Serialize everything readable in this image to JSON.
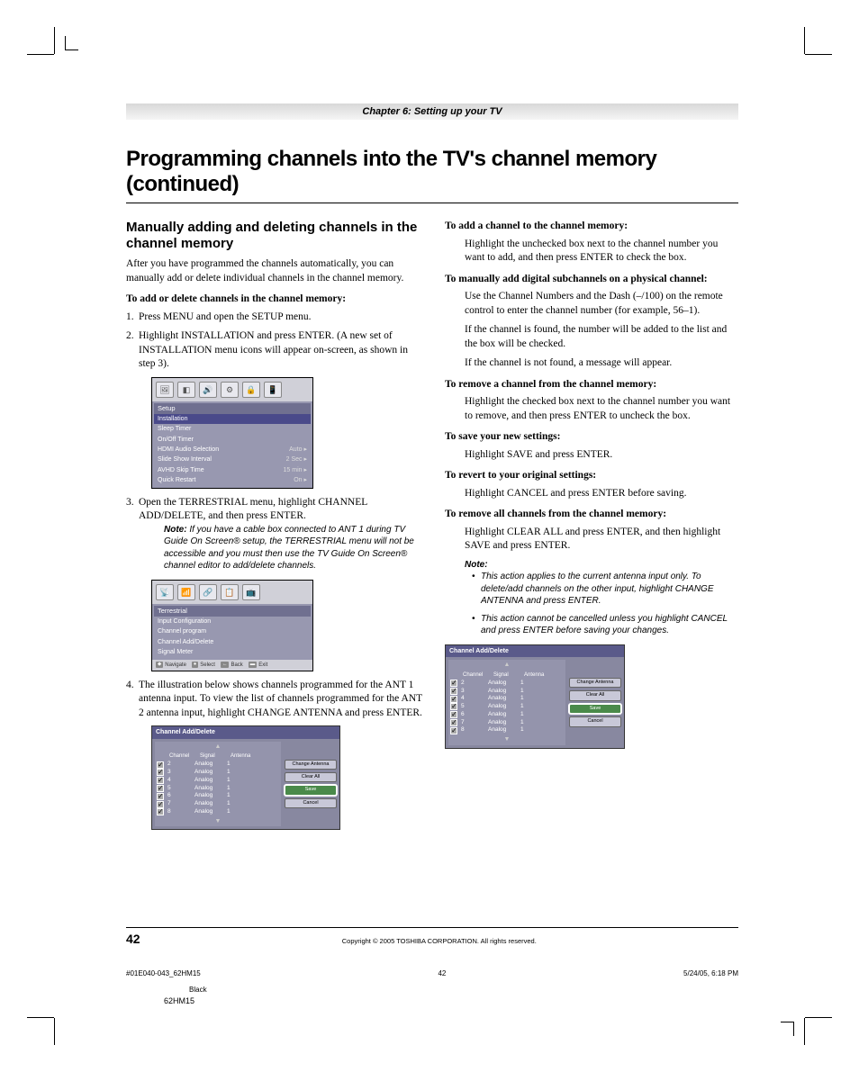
{
  "chapter": "Chapter 6: Setting up your TV",
  "title": "Programming channels into the TV's channel memory (continued)",
  "left": {
    "heading": "Manually adding and deleting channels in the channel memory",
    "intro": "After you have programmed the channels automatically, you can manually add or delete individual channels in the channel memory.",
    "lead": "To add or delete channels in the channel memory:",
    "step1": "Press MENU and open the SETUP menu.",
    "step2": "Highlight INSTALLATION and press ENTER. (A new set of INSTALLATION menu icons will appear on-screen, as shown in step 3).",
    "step3": "Open the TERRESTRIAL menu, highlight CHANNEL ADD/DELETE, and then press ENTER.",
    "note": "If you have a cable box connected to ANT 1 during TV Guide On Screen® setup, the TERRESTRIAL menu will not be accessible and you must then use the TV Guide On Screen® channel editor to add/delete channels.",
    "step4": "The illustration below shows channels programmed for the ANT 1 antenna input. To view the list of channels programmed for the ANT 2 antenna input, highlight CHANGE ANTENNA and press ENTER."
  },
  "setup_menu": {
    "title": "Setup",
    "rows": [
      {
        "label": "Installation",
        "val": "",
        "hl": true
      },
      {
        "label": "Sleep Timer",
        "val": ""
      },
      {
        "label": "On/Off Timer",
        "val": ""
      },
      {
        "label": "HDMI Audio Selection",
        "val": "Auto ▸"
      },
      {
        "label": "Slide Show Interval",
        "val": "2 Sec ▸"
      },
      {
        "label": "AVHD Skip Time",
        "val": "15 min ▸"
      },
      {
        "label": "Quick Restart",
        "val": "On ▸"
      }
    ]
  },
  "terr_menu": {
    "title": "Terrestrial",
    "rows": [
      "Input Configuration",
      "Channel program",
      "Channel Add/Delete",
      "Signal Meter"
    ],
    "bottom": [
      "Navigate",
      "Select",
      "Back",
      "Exit"
    ]
  },
  "cad": {
    "title": "Channel Add/Delete",
    "headers": [
      "",
      "Channel",
      "Signal",
      "Antenna"
    ],
    "rows": [
      {
        "ck": true,
        "ch": "2",
        "sig": "Analog",
        "ant": "1"
      },
      {
        "ck": true,
        "ch": "3",
        "sig": "Analog",
        "ant": "1"
      },
      {
        "ck": true,
        "ch": "4",
        "sig": "Analog",
        "ant": "1"
      },
      {
        "ck": true,
        "ch": "5",
        "sig": "Analog",
        "ant": "1"
      },
      {
        "ck": true,
        "ch": "6",
        "sig": "Analog",
        "ant": "1"
      },
      {
        "ck": true,
        "ch": "7",
        "sig": "Analog",
        "ant": "1"
      },
      {
        "ck": true,
        "ch": "8",
        "sig": "Analog",
        "ant": "1"
      }
    ],
    "btns": {
      "change": "Change Antenna",
      "clear": "Clear All",
      "save": "Save",
      "cancel": "Cancel"
    }
  },
  "right": {
    "h1": "To add a channel to the channel memory:",
    "p1": "Highlight the unchecked box next to the channel number you want to add, and then press ENTER to check the box.",
    "h2": "To manually add digital subchannels on a physical channel:",
    "p2a": "Use the Channel Numbers and the Dash (–/100) on the remote control to enter the channel number (for example, 56–1).",
    "p2b": "If the channel is found, the number will be added to the list and the box will be checked.",
    "p2c": "If the channel is not found, a message will appear.",
    "h3": "To remove a channel from the channel memory:",
    "p3": "Highlight the checked box next to the channel number you want to remove, and then press ENTER to uncheck the box.",
    "h4": "To save your new settings:",
    "p4": "Highlight SAVE and press ENTER.",
    "h5": "To revert to your original settings:",
    "p5": "Highlight CANCEL and press ENTER before saving.",
    "h6": "To remove all channels from the channel memory:",
    "p6": "Highlight CLEAR ALL and press ENTER, and then highlight SAVE and press ENTER.",
    "note_label": "Note:",
    "n1": "This action applies to the current antenna input only. To delete/add channels on the other input, highlight CHANGE ANTENNA and press ENTER.",
    "n2": "This action cannot be cancelled unless you highlight CANCEL and press ENTER before saving your changes."
  },
  "footer": {
    "page": "42",
    "copyright": "Copyright © 2005 TOSHIBA CORPORATION. All rights reserved.",
    "file": "#01E040-043_62HM15",
    "filepage": "42",
    "date": "5/24/05, 6:18 PM",
    "black": "Black",
    "model": "62HM15"
  }
}
